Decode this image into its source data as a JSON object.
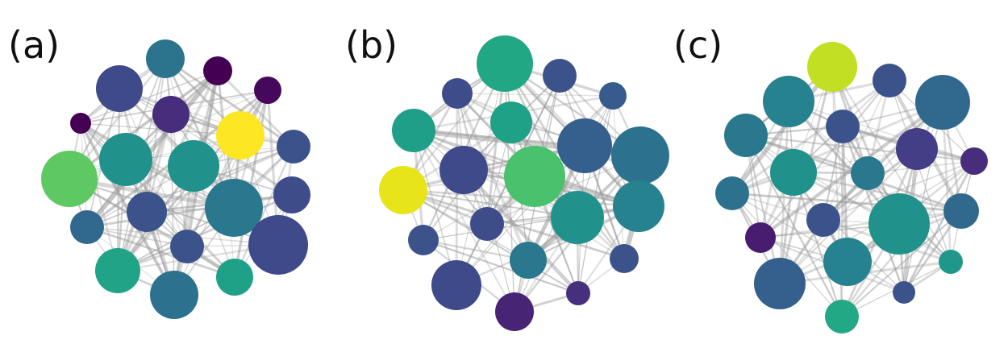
{
  "panels": [
    {
      "label": "(a)",
      "nodes": [
        {
          "color": "#2c738e"
        },
        {
          "color": "#440154"
        },
        {
          "color": "#46085c"
        },
        {
          "color": "#3e4a89"
        },
        {
          "color": "#472d7b"
        },
        {
          "color": "#440154"
        },
        {
          "color": "#fde725"
        },
        {
          "color": "#3b528b"
        },
        {
          "color": "#5ec962"
        },
        {
          "color": "#21918c"
        },
        {
          "color": "#21918c"
        },
        {
          "color": "#3e4c8a"
        },
        {
          "color": "#2a788e"
        },
        {
          "color": "#3b528b"
        },
        {
          "color": "#31688e"
        },
        {
          "color": "#3b528b"
        },
        {
          "color": "#3e4a89"
        },
        {
          "color": "#20a386"
        },
        {
          "color": "#1fa187"
        },
        {
          "color": "#2c728e"
        }
      ]
    },
    {
      "label": "(b)",
      "nodes": [
        {
          "color": "#22a785"
        },
        {
          "color": "#3b528b"
        },
        {
          "color": "#375b8d"
        },
        {
          "color": "#3e4c8a"
        },
        {
          "color": "#1fa187"
        },
        {
          "color": "#1f9f88"
        },
        {
          "color": "#355f8d"
        },
        {
          "color": "#2c728e"
        },
        {
          "color": "#3e4a89"
        },
        {
          "color": "#4ac16d"
        },
        {
          "color": "#e7e419"
        },
        {
          "color": "#26828e"
        },
        {
          "color": "#21918c"
        },
        {
          "color": "#3e4c8a"
        },
        {
          "color": "#3b528b"
        },
        {
          "color": "#2a788e"
        },
        {
          "color": "#3b528b"
        },
        {
          "color": "#3e4a89"
        },
        {
          "color": "#46307e"
        },
        {
          "color": "#482475"
        }
      ]
    },
    {
      "label": "(c)",
      "nodes": [
        {
          "color": "#c2df23"
        },
        {
          "color": "#3b528b"
        },
        {
          "color": "#26828e"
        },
        {
          "color": "#31688e"
        },
        {
          "color": "#3b528b"
        },
        {
          "color": "#2a788e"
        },
        {
          "color": "#433e85"
        },
        {
          "color": "#21918c"
        },
        {
          "color": "#2a788e"
        },
        {
          "color": "#472d7b"
        },
        {
          "color": "#2c728e"
        },
        {
          "color": "#21918c"
        },
        {
          "color": "#31688e"
        },
        {
          "color": "#3b528b"
        },
        {
          "color": "#26828e"
        },
        {
          "color": "#1f988b"
        },
        {
          "color": "#481c6e"
        },
        {
          "color": "#22a884"
        },
        {
          "color": "#355f8d"
        },
        {
          "color": "#3b528b"
        },
        {
          "color": "#46307e"
        },
        {
          "color": "#2c728e"
        }
      ]
    }
  ]
}
